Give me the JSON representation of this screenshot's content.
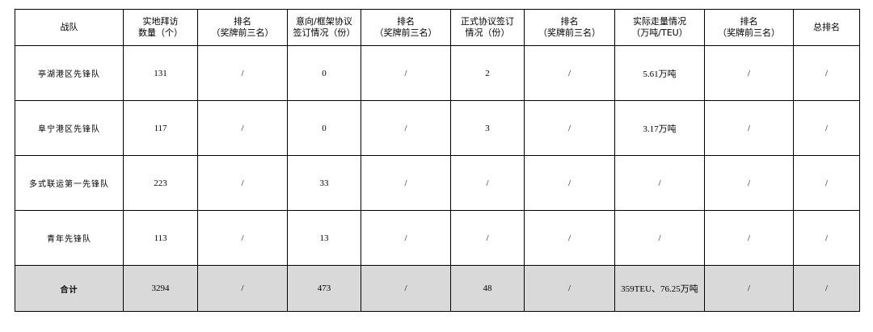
{
  "headers": [
    "战队",
    "实地拜访\n数量（个）",
    "排名\n（奖牌前三名）",
    "意向/框架协议\n签订情况（份）",
    "排名\n（奖牌前三名）",
    "正式协议签订\n情况（份）",
    "排名\n（奖牌前三名）",
    "实际走量情况\n（万吨/TEU）",
    "排名\n（奖牌前三名）",
    "总排名"
  ],
  "rows": [
    [
      "亭湖港区先锋队",
      "131",
      "/",
      "0",
      "/",
      "2",
      "/",
      "5.61万吨",
      "/",
      "/"
    ],
    [
      "阜宁港区先锋队",
      "117",
      "/",
      "0",
      "/",
      "3",
      "/",
      "3.17万吨",
      "/",
      "/"
    ],
    [
      "多式联运第一先锋队",
      "223",
      "/",
      "33",
      "/",
      "/",
      "/",
      "/",
      "/",
      "/"
    ],
    [
      "青年先锋队",
      "113",
      "/",
      "13",
      "/",
      "/",
      "/",
      "/",
      "/",
      "/"
    ],
    [
      "合计",
      "3294",
      "/",
      "473",
      "/",
      "48",
      "/",
      "359TEU、76.25万吨",
      "/",
      "/"
    ]
  ],
  "colors": {
    "total_row_bg": "#d9d9d9"
  }
}
